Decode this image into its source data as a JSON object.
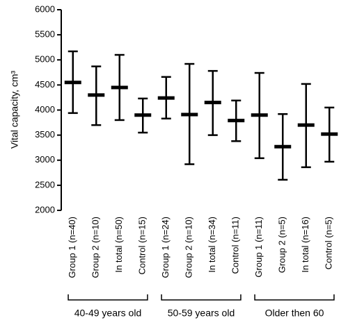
{
  "chart_data": {
    "type": "errorbar",
    "y_label": "Vital capacity, cm³",
    "categories": [
      "Group 1 (n=40)",
      "Group 2 (n=10)",
      "In total (n=50)",
      "Control (n=15)",
      "Group 1 (n=24)",
      "Group 2 (n=10)",
      "In total (n=34)",
      "Control (n=11)",
      "Group 1 (n=11)",
      "Group 2 (n=5)",
      "In total (n=16)",
      "Control (n=5)"
    ],
    "groups": [
      "40-49 years old",
      "50-59 years old",
      "Older then 60"
    ],
    "values": [
      4550,
      4300,
      4450,
      3900,
      4240,
      3910,
      4150,
      3790,
      3900,
      3270,
      3700,
      3520
    ],
    "low": [
      3940,
      3700,
      3800,
      3550,
      3830,
      2920,
      3500,
      3380,
      3040,
      2610,
      2860,
      2970
    ],
    "high": [
      5170,
      4870,
      5100,
      4230,
      4660,
      4920,
      4780,
      4190,
      4740,
      3920,
      4520,
      4050
    ],
    "color": "#000000",
    "ylim": [
      2000,
      6000
    ],
    "yticks": [
      2000,
      2500,
      3000,
      3500,
      4000,
      4500,
      5000,
      5500,
      6000
    ]
  }
}
